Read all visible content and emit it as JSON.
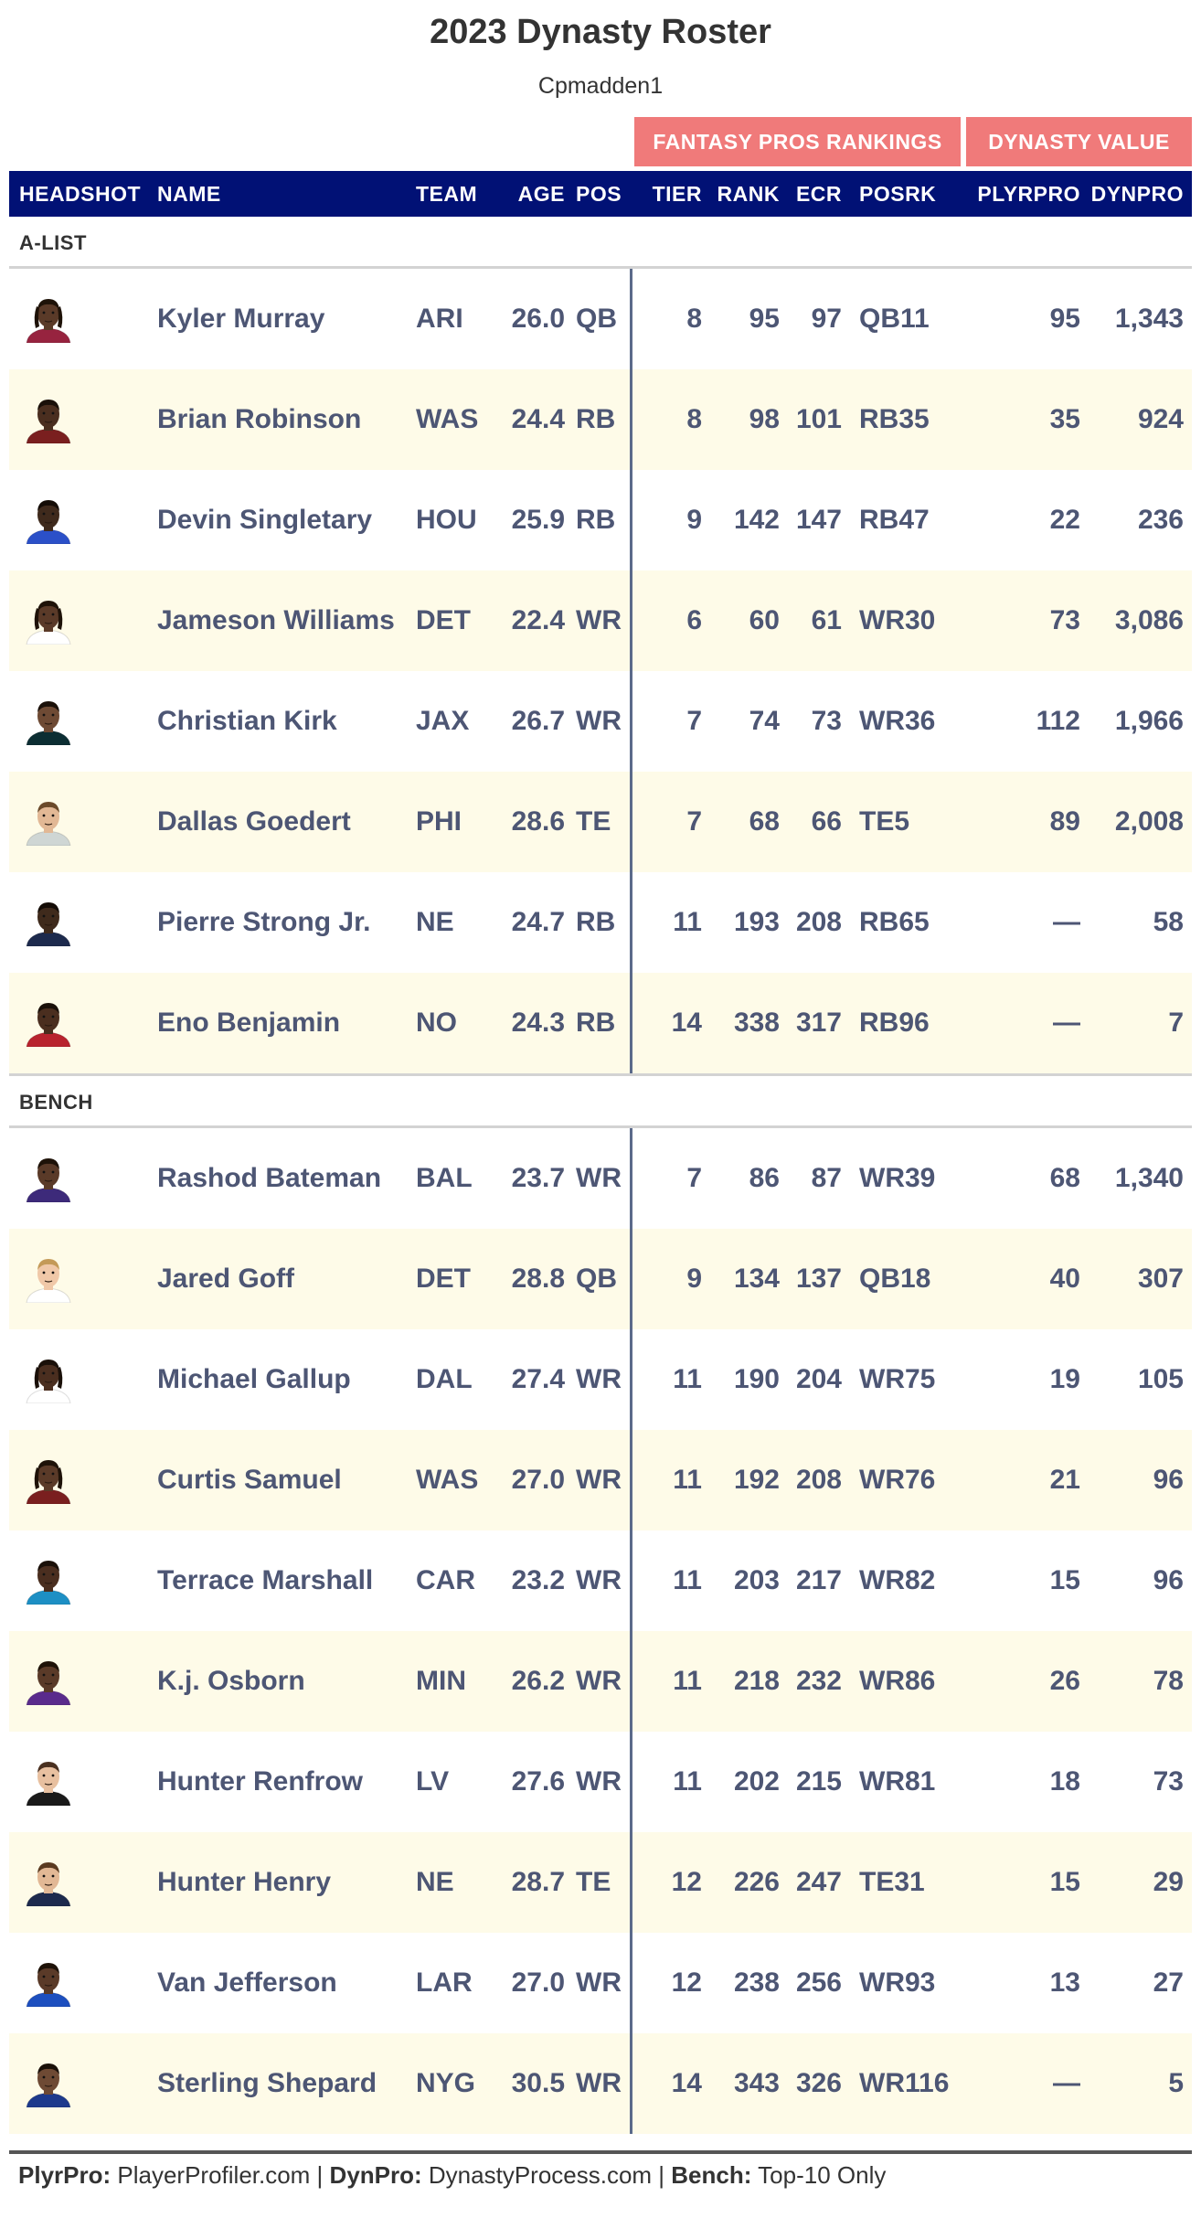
{
  "title": "2023 Dynasty Roster",
  "subtitle": "Cpmadden1",
  "spanners": {
    "fantasy_pros": "FANTASY PROS RANKINGS",
    "dynasty_value": "DYNASTY VALUE"
  },
  "columns": {
    "headshot": "HEADSHOT",
    "name": "NAME",
    "team": "TEAM",
    "age": "AGE",
    "pos": "POS",
    "tier": "TIER",
    "rank": "RANK",
    "ecr": "ECR",
    "posrk": "POSRK",
    "plyrpro": "PLYRPRO",
    "dynpro": "DYNPRO"
  },
  "colors": {
    "header_bg": "#011175",
    "spanner_bg": "#f07a7a",
    "stripe_bg": "#fefbe8",
    "text": "#4d5674"
  },
  "groups": [
    {
      "label": "A-LIST",
      "rows": [
        {
          "name": "Kyler Murray",
          "team": "ARI",
          "age": "26.0",
          "pos": "QB",
          "tier": "8",
          "rank": "95",
          "ecr": "97",
          "posrk": "QB11",
          "plyrpro": "95",
          "dynpro": "1,343",
          "headshot": {
            "skin": "#5a3a28",
            "hair": "#1e1208",
            "jersey": "#97233f",
            "dreads": true
          }
        },
        {
          "name": "Brian Robinson",
          "team": "WAS",
          "age": "24.4",
          "pos": "RB",
          "tier": "8",
          "rank": "98",
          "ecr": "101",
          "posrk": "RB35",
          "plyrpro": "35",
          "dynpro": "924",
          "headshot": {
            "skin": "#4a2e1f",
            "hair": "#1a1009",
            "jersey": "#7a1f1f",
            "dreads": false
          }
        },
        {
          "name": "Devin Singletary",
          "team": "HOU",
          "age": "25.9",
          "pos": "RB",
          "tier": "9",
          "rank": "142",
          "ecr": "147",
          "posrk": "RB47",
          "plyrpro": "22",
          "dynpro": "236",
          "headshot": {
            "skin": "#3f2a1c",
            "hair": "#140c06",
            "jersey": "#2b50c8",
            "dreads": false
          }
        },
        {
          "name": "Jameson Williams",
          "team": "DET",
          "age": "22.4",
          "pos": "WR",
          "tier": "6",
          "rank": "60",
          "ecr": "61",
          "posrk": "WR30",
          "plyrpro": "73",
          "dynpro": "3,086",
          "headshot": {
            "skin": "#5a3a28",
            "hair": "#1e1208",
            "jersey": "#ffffff",
            "dreads": true
          }
        },
        {
          "name": "Christian Kirk",
          "team": "JAX",
          "age": "26.7",
          "pos": "WR",
          "tier": "7",
          "rank": "74",
          "ecr": "73",
          "posrk": "WR36",
          "plyrpro": "112",
          "dynpro": "1,966",
          "headshot": {
            "skin": "#6e4a34",
            "hair": "#1a1009",
            "jersey": "#0c2e33",
            "dreads": false
          }
        },
        {
          "name": "Dallas Goedert",
          "team": "PHI",
          "age": "28.6",
          "pos": "TE",
          "tier": "7",
          "rank": "68",
          "ecr": "66",
          "posrk": "TE5",
          "plyrpro": "89",
          "dynpro": "2,008",
          "headshot": {
            "skin": "#e2b895",
            "hair": "#6b4a2a",
            "jersey": "#cfd6d4",
            "dreads": false
          }
        },
        {
          "name": "Pierre Strong Jr.",
          "team": "NE",
          "age": "24.7",
          "pos": "RB",
          "tier": "11",
          "rank": "193",
          "ecr": "208",
          "posrk": "RB65",
          "plyrpro": "—",
          "dynpro": "58",
          "headshot": {
            "skin": "#3f2a1c",
            "hair": "#140c06",
            "jersey": "#1d2a4d",
            "dreads": false
          }
        },
        {
          "name": "Eno Benjamin",
          "team": "NO",
          "age": "24.3",
          "pos": "RB",
          "tier": "14",
          "rank": "338",
          "ecr": "317",
          "posrk": "RB96",
          "plyrpro": "—",
          "dynpro": "7",
          "headshot": {
            "skin": "#4a2e1f",
            "hair": "#1a1009",
            "jersey": "#b8232e",
            "dreads": false
          }
        }
      ]
    },
    {
      "label": "BENCH",
      "rows": [
        {
          "name": "Rashod Bateman",
          "team": "BAL",
          "age": "23.7",
          "pos": "WR",
          "tier": "7",
          "rank": "86",
          "ecr": "87",
          "posrk": "WR39",
          "plyrpro": "68",
          "dynpro": "1,340",
          "headshot": {
            "skin": "#5a3a28",
            "hair": "#1e1208",
            "jersey": "#3d2a7a",
            "dreads": false
          }
        },
        {
          "name": "Jared Goff",
          "team": "DET",
          "age": "28.8",
          "pos": "QB",
          "tier": "9",
          "rank": "134",
          "ecr": "137",
          "posrk": "QB18",
          "plyrpro": "40",
          "dynpro": "307",
          "headshot": {
            "skin": "#f0c8a8",
            "hair": "#c49a58",
            "jersey": "#ffffff",
            "dreads": false
          }
        },
        {
          "name": "Michael Gallup",
          "team": "DAL",
          "age": "27.4",
          "pos": "WR",
          "tier": "11",
          "rank": "190",
          "ecr": "204",
          "posrk": "WR75",
          "plyrpro": "19",
          "dynpro": "105",
          "headshot": {
            "skin": "#4a2e1f",
            "hair": "#1a1009",
            "jersey": "#ffffff",
            "dreads": true
          }
        },
        {
          "name": "Curtis Samuel",
          "team": "WAS",
          "age": "27.0",
          "pos": "WR",
          "tier": "11",
          "rank": "192",
          "ecr": "208",
          "posrk": "WR76",
          "plyrpro": "21",
          "dynpro": "96",
          "headshot": {
            "skin": "#5a3a28",
            "hair": "#1e1208",
            "jersey": "#7a1f1f",
            "dreads": true
          }
        },
        {
          "name": "Terrace Marshall",
          "team": "CAR",
          "age": "23.2",
          "pos": "WR",
          "tier": "11",
          "rank": "203",
          "ecr": "217",
          "posrk": "WR82",
          "plyrpro": "15",
          "dynpro": "96",
          "headshot": {
            "skin": "#4a2e1f",
            "hair": "#1a1009",
            "jersey": "#1d8fc4",
            "dreads": false
          }
        },
        {
          "name": "K.j. Osborn",
          "team": "MIN",
          "age": "26.2",
          "pos": "WR",
          "tier": "11",
          "rank": "218",
          "ecr": "232",
          "posrk": "WR86",
          "plyrpro": "26",
          "dynpro": "78",
          "headshot": {
            "skin": "#5a3a28",
            "hair": "#1e1208",
            "jersey": "#5a2b8c",
            "dreads": false
          }
        },
        {
          "name": "Hunter Renfrow",
          "team": "LV",
          "age": "27.6",
          "pos": "WR",
          "tier": "11",
          "rank": "202",
          "ecr": "215",
          "posrk": "WR81",
          "plyrpro": "18",
          "dynpro": "73",
          "headshot": {
            "skin": "#e8c0a0",
            "hair": "#4a3020",
            "jersey": "#1a1a1a",
            "dreads": false
          }
        },
        {
          "name": "Hunter Henry",
          "team": "NE",
          "age": "28.7",
          "pos": "TE",
          "tier": "12",
          "rank": "226",
          "ecr": "247",
          "posrk": "TE31",
          "plyrpro": "15",
          "dynpro": "29",
          "headshot": {
            "skin": "#e2b895",
            "hair": "#5a3a20",
            "jersey": "#1d2a4d",
            "dreads": false
          }
        },
        {
          "name": "Van Jefferson",
          "team": "LAR",
          "age": "27.0",
          "pos": "WR",
          "tier": "12",
          "rank": "238",
          "ecr": "256",
          "posrk": "WR93",
          "plyrpro": "13",
          "dynpro": "27",
          "headshot": {
            "skin": "#5a3a28",
            "hair": "#1e1208",
            "jersey": "#1d4fbf",
            "dreads": false
          }
        },
        {
          "name": "Sterling Shepard",
          "team": "NYG",
          "age": "30.5",
          "pos": "WR",
          "tier": "14",
          "rank": "343",
          "ecr": "326",
          "posrk": "WR116",
          "plyrpro": "—",
          "dynpro": "5",
          "headshot": {
            "skin": "#6e4a34",
            "hair": "#1a1009",
            "jersey": "#1d3a8c",
            "dreads": false
          }
        }
      ]
    }
  ],
  "footer": [
    {
      "bold": "PlyrPro:",
      "text": " PlayerProfiler.com | "
    },
    {
      "bold": "DynPro:",
      "text": " DynastyProcess.com | "
    },
    {
      "bold": "Bench:",
      "text": " Top-10 Only"
    }
  ]
}
